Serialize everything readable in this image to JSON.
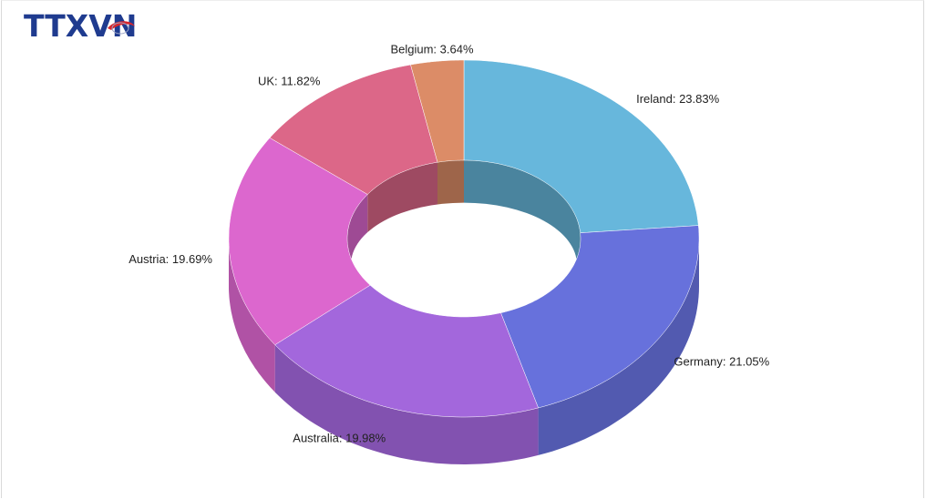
{
  "logo": {
    "text": "TTXVN",
    "colors": {
      "letters": "#1f3b8f",
      "swoosh": "#d7262e"
    }
  },
  "chart_data": {
    "type": "pie",
    "style": "3d-donut",
    "title": "",
    "slices": [
      {
        "label": "Ireland",
        "value": 23.83,
        "text": "Ireland: 23.83%",
        "color": "#67b7dc"
      },
      {
        "label": "Germany",
        "value": 21.05,
        "text": "Germany: 21.05%",
        "color": "#6771dc"
      },
      {
        "label": "Australia",
        "value": 19.98,
        "text": "Australia: 19.98%",
        "color": "#a367dc"
      },
      {
        "label": "Austria",
        "value": 19.69,
        "text": "Austria: 19.69%",
        "color": "#dc67ce"
      },
      {
        "label": "UK",
        "value": 11.82,
        "text": "UK: 11.82%",
        "color": "#dc6788"
      },
      {
        "label": "Belgium",
        "value": 3.64,
        "text": "Belgium: 3.64%",
        "color": "#dc8c67"
      }
    ]
  }
}
